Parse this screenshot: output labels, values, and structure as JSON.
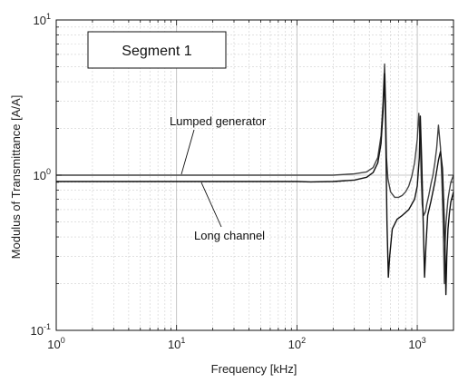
{
  "chart_data": {
    "type": "line",
    "title": "",
    "xlabel": "Frequency [kHz]",
    "ylabel": "Modulus of Transmittance [A/A]",
    "xscale": "log",
    "yscale": "log",
    "xlim": [
      1,
      2000
    ],
    "ylim": [
      0.1,
      10
    ],
    "grid": true,
    "x_ticks": [
      {
        "base": "10",
        "exp": "0",
        "value": 1
      },
      {
        "base": "10",
        "exp": "1",
        "value": 10
      },
      {
        "base": "10",
        "exp": "2",
        "value": 100
      },
      {
        "base": "10",
        "exp": "3",
        "value": 1000
      }
    ],
    "y_ticks": [
      {
        "base": "10",
        "exp": "-1",
        "value": 0.1
      },
      {
        "base": "10",
        "exp": "0",
        "value": 1
      },
      {
        "base": "10",
        "exp": "1",
        "value": 10
      }
    ],
    "legend_box": "Segment 1",
    "annotations": [
      {
        "text": "Lumped generator",
        "series": 0
      },
      {
        "text": "Long channel",
        "series": 1
      }
    ],
    "series": [
      {
        "name": "Lumped generator",
        "color": "#444444",
        "x": [
          1,
          10,
          100,
          200,
          300,
          380,
          430,
          470,
          500,
          520,
          535,
          545,
          555,
          570,
          600,
          650,
          700,
          750,
          800,
          850,
          900,
          950,
          1000,
          1030,
          1060,
          1080,
          1100,
          1130,
          1170,
          1200,
          1250,
          1300,
          1350,
          1400,
          1450,
          1500,
          1560,
          1600,
          1640,
          1680,
          1700,
          1730,
          1770,
          1800,
          1850,
          1900,
          2000
        ],
        "y": [
          1.0,
          1.0,
          1.0,
          1.0,
          1.02,
          1.05,
          1.12,
          1.3,
          1.8,
          3.0,
          5.2,
          3.0,
          1.3,
          0.95,
          0.78,
          0.72,
          0.72,
          0.74,
          0.78,
          0.85,
          0.98,
          1.2,
          1.7,
          2.5,
          1.6,
          0.95,
          0.65,
          0.55,
          0.58,
          0.65,
          0.75,
          0.88,
          1.0,
          1.2,
          1.5,
          2.1,
          1.5,
          0.95,
          0.5,
          0.2,
          0.35,
          0.48,
          0.6,
          0.7,
          0.8,
          0.9,
          1.0
        ]
      },
      {
        "name": "Long channel",
        "color": "#111111",
        "x": [
          1,
          10,
          100,
          130,
          200,
          300,
          380,
          430,
          470,
          500,
          520,
          535,
          545,
          560,
          575,
          590,
          620,
          680,
          750,
          850,
          950,
          1000,
          1040,
          1060,
          1090,
          1120,
          1150,
          1180,
          1220,
          1300,
          1400,
          1500,
          1560,
          1620,
          1660,
          1700,
          1730,
          1760,
          1800,
          1850,
          1900,
          2000
        ],
        "y": [
          0.91,
          0.91,
          0.91,
          0.905,
          0.91,
          0.93,
          0.97,
          1.04,
          1.2,
          1.6,
          2.6,
          4.5,
          2.2,
          0.5,
          0.22,
          0.3,
          0.45,
          0.52,
          0.55,
          0.6,
          0.7,
          0.85,
          1.3,
          2.4,
          1.2,
          0.5,
          0.22,
          0.35,
          0.55,
          0.68,
          0.9,
          1.25,
          1.42,
          1.1,
          0.65,
          0.35,
          0.17,
          0.3,
          0.45,
          0.57,
          0.67,
          0.78
        ]
      }
    ]
  }
}
